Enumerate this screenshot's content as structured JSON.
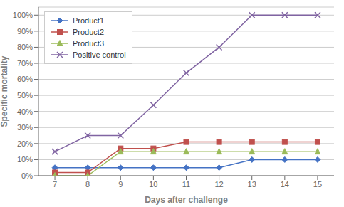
{
  "chart_data": {
    "type": "line",
    "x": [
      7,
      8,
      9,
      10,
      11,
      12,
      13,
      14,
      15
    ],
    "series": [
      {
        "name": "Product1",
        "color": "#4472C4",
        "marker": "diamond",
        "values": [
          0.05,
          0.05,
          0.05,
          0.05,
          0.05,
          0.05,
          0.1,
          0.1,
          0.1
        ]
      },
      {
        "name": "Product2",
        "color": "#C0504D",
        "marker": "square",
        "values": [
          0.02,
          0.02,
          0.17,
          0.17,
          0.21,
          0.21,
          0.21,
          0.21,
          0.21
        ]
      },
      {
        "name": "Product3",
        "color": "#9BBB59",
        "marker": "triangle",
        "values": [
          0.0,
          0.0,
          0.15,
          0.15,
          0.15,
          0.15,
          0.15,
          0.15,
          0.15
        ]
      },
      {
        "name": "Positive control",
        "color": "#8064A2",
        "marker": "x",
        "values": [
          0.15,
          0.25,
          0.25,
          0.44,
          0.64,
          0.8,
          1.0,
          1.0,
          1.0
        ]
      }
    ],
    "xlabel": "Days after challenge",
    "ylabel": "Specific mortality",
    "xlim": [
      6.5,
      15.5
    ],
    "xticks": [
      7,
      8,
      9,
      10,
      11,
      12,
      13,
      14,
      15
    ],
    "ylim": [
      0,
      1.05
    ],
    "yticks": [
      {
        "value": 0,
        "label": "0%"
      },
      {
        "value": 0.1,
        "label": "10%"
      },
      {
        "value": 0.2,
        "label": "20%"
      },
      {
        "value": 0.3,
        "label": "30%"
      },
      {
        "value": 0.4,
        "label": "40%"
      },
      {
        "value": 0.5,
        "label": "50%"
      },
      {
        "value": 0.6,
        "label": "60%"
      },
      {
        "value": 0.7,
        "label": "70%"
      },
      {
        "value": 0.8,
        "label": "80%"
      },
      {
        "value": 0.9,
        "label": "90%"
      },
      {
        "value": 1.0,
        "label": "100%"
      }
    ],
    "grid": "y",
    "legend": "upper left"
  }
}
